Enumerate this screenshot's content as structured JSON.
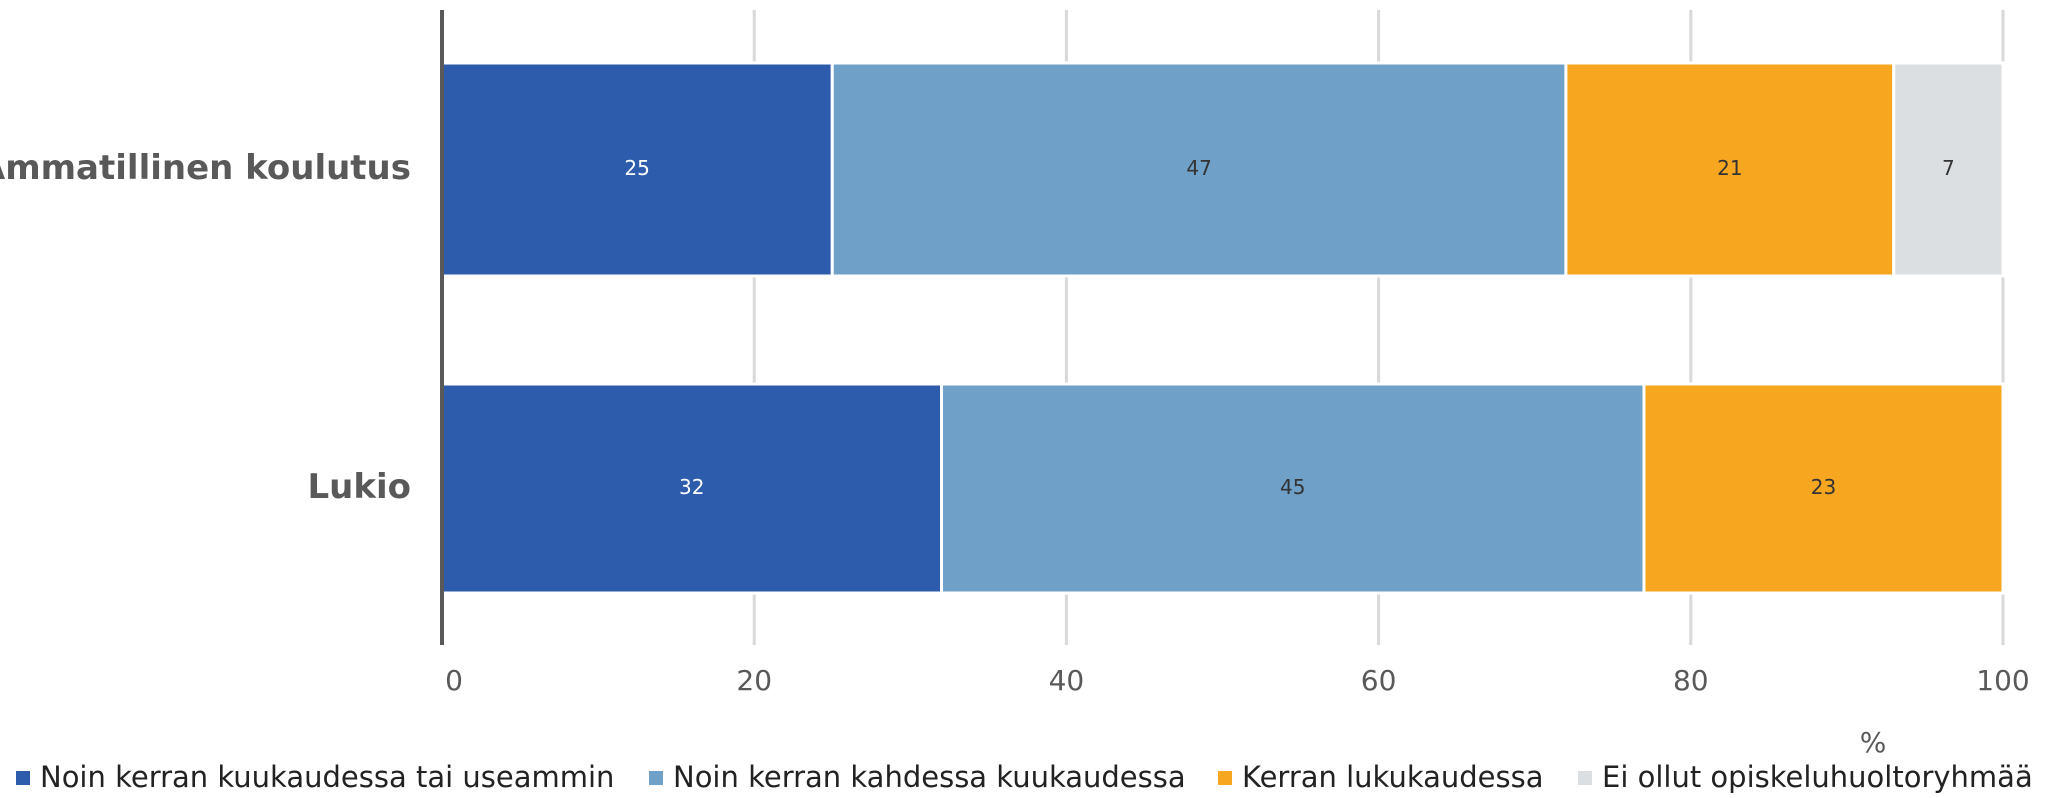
{
  "chart_data": {
    "type": "stacked-bar-horizontal",
    "categories": [
      "Ammatillinen koulutus",
      "Lukio"
    ],
    "series": [
      {
        "name": "Noin kerran kuukaudessa tai useammin",
        "color": "#2e5cac",
        "values": [
          25,
          32
        ]
      },
      {
        "name": "Noin kerran kahdessa kuukaudessa",
        "color": "#6fa0c8",
        "values": [
          47,
          45
        ]
      },
      {
        "name": "Kerran lukukaudessa",
        "color": "#f6a61f",
        "values": [
          21,
          23
        ]
      },
      {
        "name": "Ei ollut opiskeluhuoltoryhmää",
        "color": "#dcdfe2",
        "values": [
          7,
          null
        ]
      }
    ],
    "x_label": "%",
    "xlim": [
      0,
      100
    ],
    "xticks": [
      0,
      20,
      40,
      60,
      80,
      100
    ],
    "grid": true
  }
}
